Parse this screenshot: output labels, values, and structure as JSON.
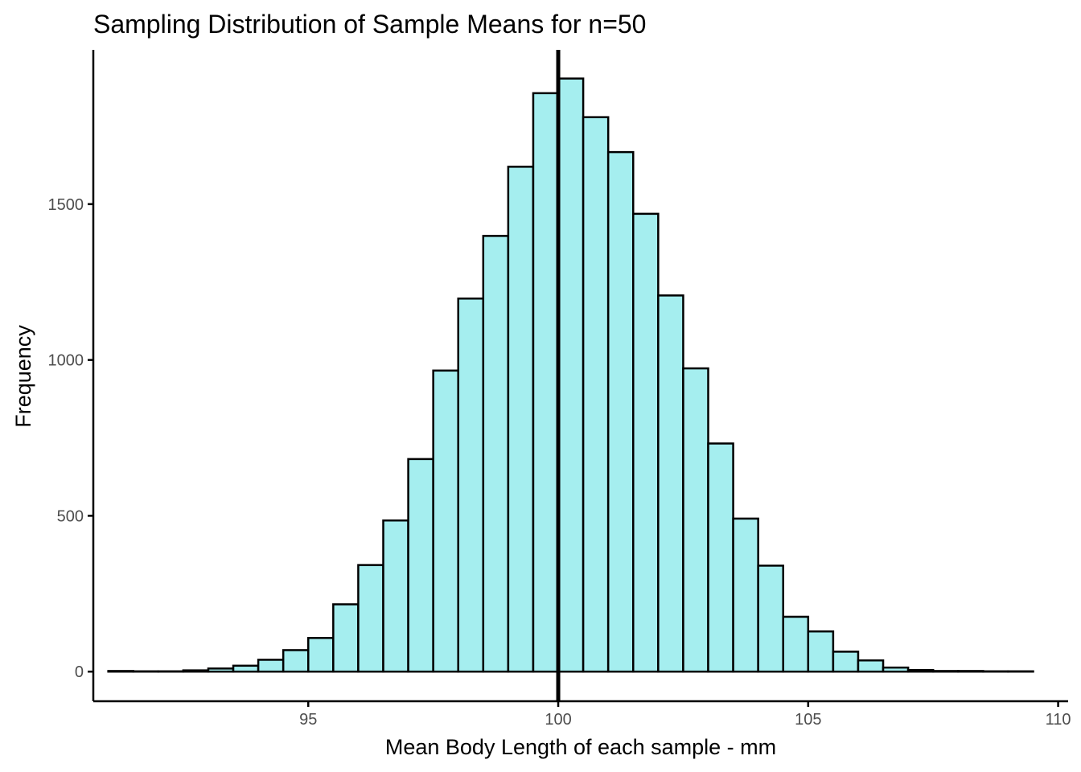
{
  "chart_data": {
    "type": "bar",
    "title": "Sampling Distribution of Sample Means for n=50",
    "xlabel": "Mean Body Length of each sample - mm",
    "ylabel": "Frequency",
    "xlim": [
      90.7,
      110.2
    ],
    "ylim": [
      -95,
      1995
    ],
    "x_ticks": [
      95,
      100,
      105,
      110
    ],
    "y_ticks": [
      0,
      500,
      1000,
      1500
    ],
    "bin_width": 0.5,
    "bins": [
      {
        "x0": 91.0,
        "count": 2
      },
      {
        "x0": 91.5,
        "count": 1
      },
      {
        "x0": 92.0,
        "count": 1
      },
      {
        "x0": 92.5,
        "count": 4
      },
      {
        "x0": 93.0,
        "count": 10
      },
      {
        "x0": 93.5,
        "count": 19
      },
      {
        "x0": 94.0,
        "count": 38
      },
      {
        "x0": 94.5,
        "count": 69
      },
      {
        "x0": 95.0,
        "count": 108
      },
      {
        "x0": 95.5,
        "count": 216
      },
      {
        "x0": 96.0,
        "count": 342
      },
      {
        "x0": 96.5,
        "count": 485
      },
      {
        "x0": 97.0,
        "count": 682
      },
      {
        "x0": 97.5,
        "count": 966
      },
      {
        "x0": 98.0,
        "count": 1197
      },
      {
        "x0": 98.5,
        "count": 1398
      },
      {
        "x0": 99.0,
        "count": 1620
      },
      {
        "x0": 99.5,
        "count": 1856
      },
      {
        "x0": 100.0,
        "count": 1903
      },
      {
        "x0": 100.5,
        "count": 1779
      },
      {
        "x0": 101.0,
        "count": 1667
      },
      {
        "x0": 101.5,
        "count": 1469
      },
      {
        "x0": 102.0,
        "count": 1207
      },
      {
        "x0": 102.5,
        "count": 973
      },
      {
        "x0": 103.0,
        "count": 732
      },
      {
        "x0": 103.5,
        "count": 491
      },
      {
        "x0": 104.0,
        "count": 340
      },
      {
        "x0": 104.5,
        "count": 176
      },
      {
        "x0": 105.0,
        "count": 129
      },
      {
        "x0": 105.5,
        "count": 64
      },
      {
        "x0": 106.0,
        "count": 36
      },
      {
        "x0": 106.5,
        "count": 13
      },
      {
        "x0": 107.0,
        "count": 5
      },
      {
        "x0": 107.5,
        "count": 2
      },
      {
        "x0": 108.0,
        "count": 2
      },
      {
        "x0": 108.5,
        "count": 1
      },
      {
        "x0": 109.0,
        "count": 1
      }
    ],
    "reference_line_x": 100.0,
    "bar_fill": "#a5eeef",
    "bar_stroke": "#000000",
    "grid": false,
    "legend": "none"
  }
}
